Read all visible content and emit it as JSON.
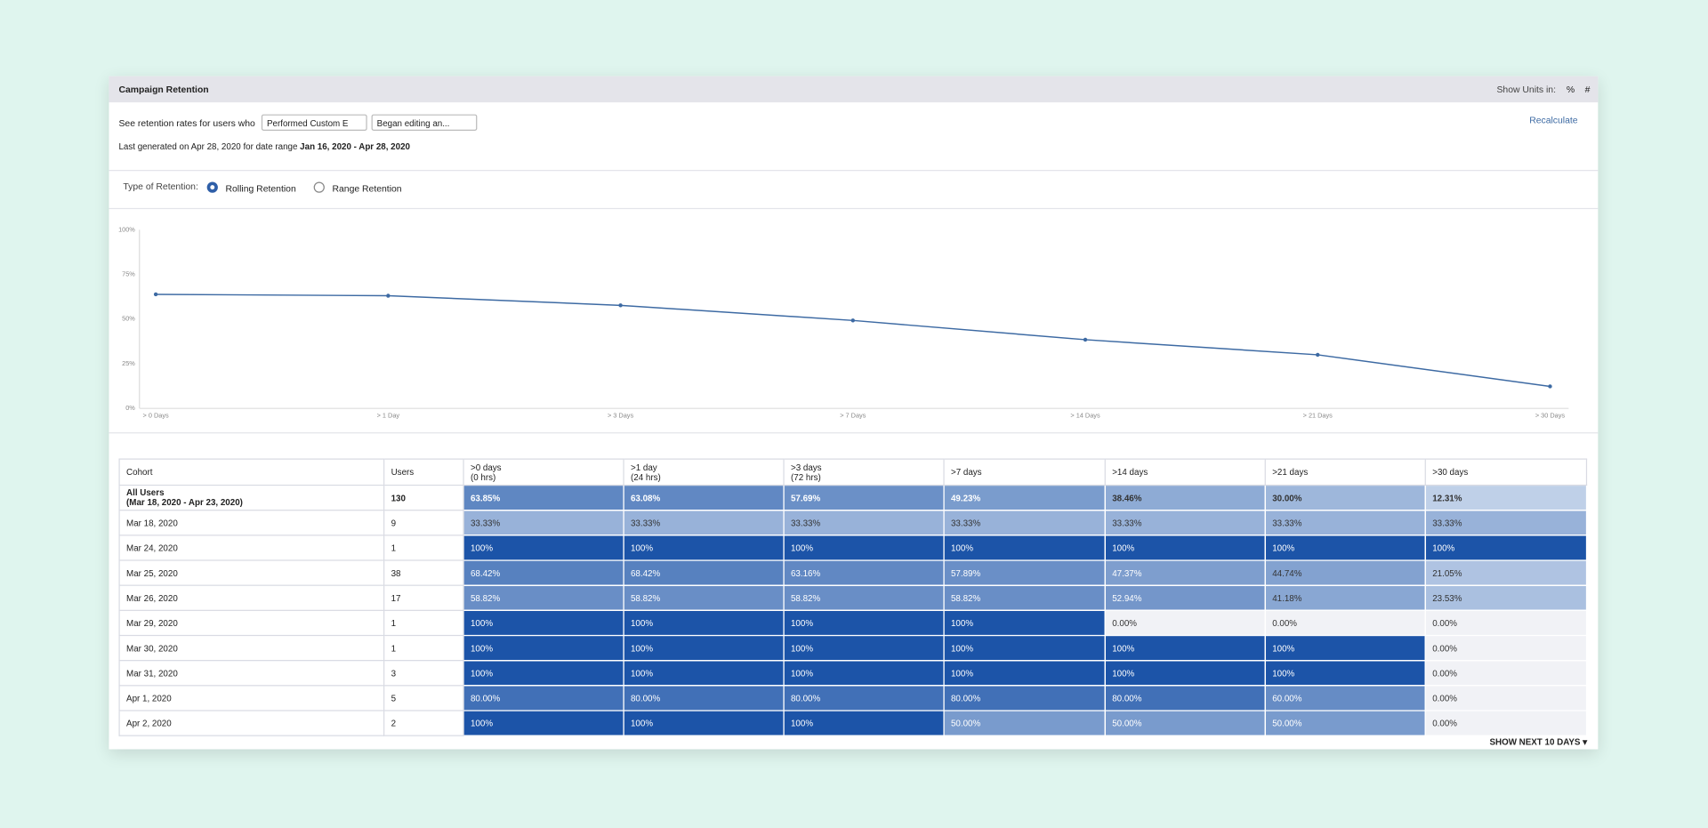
{
  "header": {
    "title": "Campaign Retention",
    "units_label": "Show Units in:",
    "units": [
      "%",
      "#"
    ]
  },
  "filters": {
    "prompt": "See retention rates for users who",
    "select1": "Performed Custom E",
    "select2": "Began editing an...",
    "recalculate": "Recalculate",
    "generated_prefix": "Last generated on Apr 28, 2020 for date range",
    "date_range": "Jan 16, 2020 - Apr 28, 2020"
  },
  "retention_type": {
    "label": "Type of Retention:",
    "options": [
      "Rolling Retention",
      "Range Retention"
    ]
  },
  "chart_data": {
    "type": "line",
    "categories": [
      "> 0 Days",
      "> 1 Day",
      "> 3 Days",
      "> 7 Days",
      "> 14 Days",
      "> 21 Days",
      "> 30 Days"
    ],
    "values": [
      63.85,
      63.08,
      57.69,
      49.23,
      38.46,
      30.0,
      12.31
    ],
    "color": "#3d6aa3",
    "ylim": [
      0,
      100
    ],
    "yticks": [
      {
        "value": 0,
        "label": "0%"
      },
      {
        "value": 25,
        "label": "25%"
      },
      {
        "value": 50,
        "label": "50%"
      },
      {
        "value": 75,
        "label": "75%"
      },
      {
        "value": 100,
        "label": "100%"
      }
    ]
  },
  "table": {
    "columns": [
      {
        "label": "Cohort"
      },
      {
        "label": "Users"
      },
      {
        "label": ">0 days",
        "sub": "(0 hrs)"
      },
      {
        "label": ">1 day",
        "sub": "(24 hrs)"
      },
      {
        "label": ">3 days",
        "sub": "(72 hrs)"
      },
      {
        "label": ">7 days"
      },
      {
        "label": ">14 days"
      },
      {
        "label": ">21 days"
      },
      {
        "label": ">30 days"
      }
    ],
    "rows": [
      [
        {
          "label": "All Users",
          "sub": "(Mar 18, 2020 - Apr 23, 2020)"
        },
        130,
        "63.85%",
        "63.08%",
        "57.69%",
        "49.23%",
        "38.46%",
        "30.00%",
        "12.31%"
      ],
      [
        {
          "label": "Mar 18, 2020"
        },
        9,
        "33.33%",
        "33.33%",
        "33.33%",
        "33.33%",
        "33.33%",
        "33.33%",
        "33.33%"
      ],
      [
        {
          "label": "Mar 24, 2020"
        },
        1,
        "100%",
        "100%",
        "100%",
        "100%",
        "100%",
        "100%",
        "100%"
      ],
      [
        {
          "label": "Mar 25, 2020"
        },
        38,
        "68.42%",
        "68.42%",
        "63.16%",
        "57.89%",
        "47.37%",
        "44.74%",
        "21.05%"
      ],
      [
        {
          "label": "Mar 26, 2020"
        },
        17,
        "58.82%",
        "58.82%",
        "58.82%",
        "58.82%",
        "52.94%",
        "41.18%",
        "23.53%"
      ],
      [
        {
          "label": "Mar 29, 2020"
        },
        1,
        "100%",
        "100%",
        "100%",
        "100%",
        "0.00%",
        "0.00%",
        "0.00%"
      ],
      [
        {
          "label": "Mar 30, 2020"
        },
        1,
        "100%",
        "100%",
        "100%",
        "100%",
        "100%",
        "100%",
        "0.00%"
      ],
      [
        {
          "label": "Mar 31, 2020"
        },
        3,
        "100%",
        "100%",
        "100%",
        "100%",
        "100%",
        "100%",
        "0.00%"
      ],
      [
        {
          "label": "Apr 1, 2020"
        },
        5,
        "80.00%",
        "80.00%",
        "80.00%",
        "80.00%",
        "80.00%",
        "60.00%",
        "0.00%"
      ],
      [
        {
          "label": "Apr 2, 2020"
        },
        2,
        "100%",
        "100%",
        "100%",
        "50.00%",
        "50.00%",
        "50.00%",
        "0.00%"
      ]
    ]
  },
  "footer": {
    "show_next": "SHOW NEXT 10 DAYS"
  }
}
